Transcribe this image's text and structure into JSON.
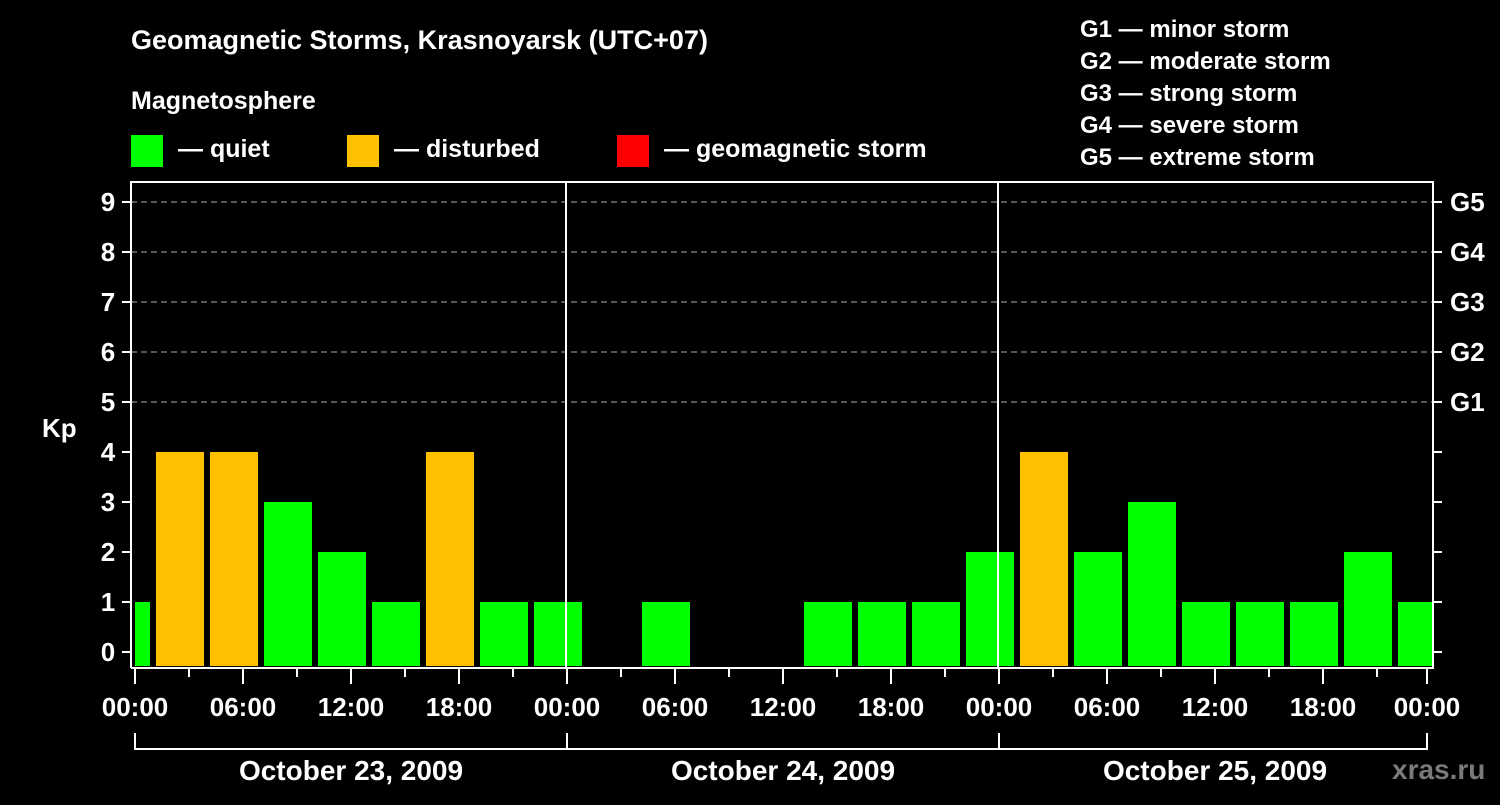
{
  "header": {
    "title": "Geomagnetic Storms, Krasnoyarsk (UTC+07)",
    "subtitle": "Magnetosphere"
  },
  "legend": [
    {
      "label": "— quiet",
      "color": "#00ff00"
    },
    {
      "label": "— disturbed",
      "color": "#ffc000"
    },
    {
      "label": "— geomagnetic storm",
      "color": "#ff0000"
    }
  ],
  "g_scale_legend": [
    "G1 — minor storm",
    "G2 — moderate storm",
    "G3 — strong storm",
    "G4 — severe storm",
    "G5 — extreme storm"
  ],
  "colors": {
    "background": "#000000",
    "axis": "#ffffff",
    "grid": "#8a8a8a",
    "quiet": "#00ff00",
    "disturbed": "#ffc000",
    "storm": "#ff0000",
    "watermark": "#7a7a7a"
  },
  "watermark": "xras.ru",
  "chart_data": {
    "type": "bar",
    "title": "Geomagnetic Storms, Krasnoyarsk (UTC+07)",
    "subtitle": "Magnetosphere",
    "xlabel": "",
    "ylabel": "Kp",
    "ylim": [
      0,
      9
    ],
    "yticks": [
      0,
      1,
      2,
      3,
      4,
      5,
      6,
      7,
      8,
      9
    ],
    "right_axis_labels": [
      {
        "kp": 5,
        "label": "G1"
      },
      {
        "kp": 6,
        "label": "G2"
      },
      {
        "kp": 7,
        "label": "G3"
      },
      {
        "kp": 8,
        "label": "G4"
      },
      {
        "kp": 9,
        "label": "G5"
      }
    ],
    "grid": {
      "horizontal_dashed_at": [
        5,
        6,
        7,
        8,
        9
      ]
    },
    "xtick_labels": [
      "00:00",
      "06:00",
      "12:00",
      "18:00",
      "00:00",
      "06:00",
      "12:00",
      "18:00",
      "00:00",
      "06:00",
      "12:00",
      "18:00",
      "00:00"
    ],
    "days": [
      "October 23, 2009",
      "October 24, 2009",
      "October 25, 2009"
    ],
    "interval_hours": 3,
    "legend": [
      "quiet",
      "disturbed",
      "geomagnetic storm"
    ],
    "legend_position": "top",
    "categories": [
      "Oct 23 00:00",
      "Oct 23 03:00",
      "Oct 23 06:00",
      "Oct 23 09:00",
      "Oct 23 12:00",
      "Oct 23 15:00",
      "Oct 23 18:00",
      "Oct 23 21:00",
      "Oct 24 00:00",
      "Oct 24 03:00",
      "Oct 24 06:00",
      "Oct 24 09:00",
      "Oct 24 12:00",
      "Oct 24 15:00",
      "Oct 24 18:00",
      "Oct 24 21:00",
      "Oct 25 00:00",
      "Oct 25 03:00",
      "Oct 25 06:00",
      "Oct 25 09:00",
      "Oct 25 12:00",
      "Oct 25 15:00",
      "Oct 25 18:00",
      "Oct 25 21:00",
      "Oct 26 00:00"
    ],
    "values": [
      1,
      4,
      4,
      3,
      2,
      1,
      4,
      1,
      1,
      0,
      1,
      0,
      0,
      1,
      1,
      1,
      2,
      4,
      2,
      3,
      1,
      1,
      1,
      2,
      1
    ],
    "status": [
      "quiet",
      "disturbed",
      "disturbed",
      "quiet",
      "quiet",
      "quiet",
      "disturbed",
      "quiet",
      "quiet",
      "quiet",
      "quiet",
      "quiet",
      "quiet",
      "quiet",
      "quiet",
      "quiet",
      "quiet",
      "disturbed",
      "quiet",
      "quiet",
      "quiet",
      "quiet",
      "quiet",
      "quiet",
      "quiet"
    ]
  }
}
